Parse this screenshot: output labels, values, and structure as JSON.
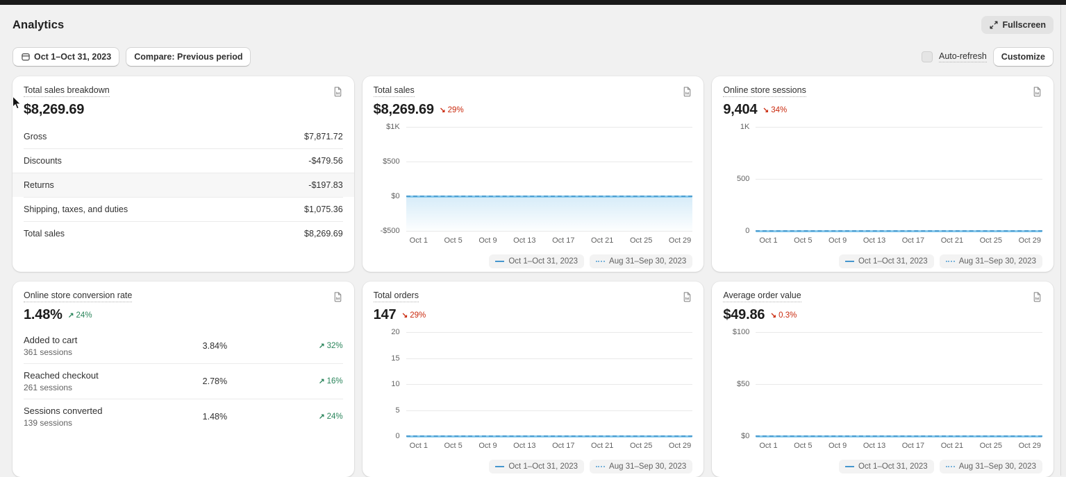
{
  "app": {
    "title": "Analytics",
    "fullscreen_label": "Fullscreen"
  },
  "toolbar": {
    "date_range_label": "Oct 1–Oct 31, 2023",
    "compare_label": "Compare: Previous period",
    "auto_refresh_label": "Auto-refresh",
    "auto_refresh_checked": false,
    "customize_label": "Customize"
  },
  "icons": {
    "trend_up": "↗",
    "trend_down": "↘"
  },
  "colors": {
    "accent_blue": "#4596ce",
    "negative_red": "#ca2a0e",
    "positive_green": "#29845a",
    "page_bg": "#f1f1f1",
    "card_bg": "#ffffff"
  },
  "shared": {
    "x_labels": [
      "Oct 1",
      "Oct 5",
      "Oct 9",
      "Oct 13",
      "Oct 17",
      "Oct 21",
      "Oct 25",
      "Oct 29"
    ],
    "legend": [
      {
        "label": "Oct 1–Oct 31, 2023",
        "style": "solid"
      },
      {
        "label": "Aug 31–Sep 30, 2023",
        "style": "dotted"
      }
    ]
  },
  "cards": [
    {
      "id": "total-sales-breakdown",
      "type": "table",
      "title": "Total sales breakdown",
      "value": "$8,269.69",
      "rows": [
        {
          "label": "Gross",
          "value": "$7,871.72",
          "highlighted": false
        },
        {
          "label": "Discounts",
          "value": "-$479.56",
          "highlighted": false
        },
        {
          "label": "Returns",
          "value": "-$197.83",
          "highlighted": true
        },
        {
          "label": "Shipping, taxes, and duties",
          "value": "$1,075.36",
          "highlighted": false
        },
        {
          "label": "Total sales",
          "value": "$8,269.69",
          "highlighted": false
        }
      ]
    },
    {
      "id": "total-sales",
      "type": "chart",
      "title": "Total sales",
      "value": "$8,269.69",
      "delta": {
        "direction": "down",
        "text": "29%"
      },
      "chart": {
        "y_ticks": [
          "$1K",
          "$500",
          "$0",
          "-$500"
        ],
        "zero_index": 2,
        "fill_below": true,
        "series_note": "current and comparison both flat at ~$0"
      }
    },
    {
      "id": "online-store-sessions",
      "type": "chart",
      "title": "Online store sessions",
      "value": "9,404",
      "delta": {
        "direction": "down",
        "text": "34%"
      },
      "chart": {
        "y_ticks": [
          "1K",
          "500",
          "0"
        ],
        "zero_index": 2,
        "fill_below": false,
        "series_note": "current and comparison both flat at ~0"
      }
    },
    {
      "id": "online-store-conversion-rate",
      "type": "funnel",
      "title": "Online store conversion rate",
      "value": "1.48%",
      "delta": {
        "direction": "up",
        "text": "24%"
      },
      "rows": [
        {
          "label": "Added to cart",
          "sessions": "361 sessions",
          "rate": "3.84%",
          "delta": {
            "direction": "up",
            "text": "32%"
          }
        },
        {
          "label": "Reached checkout",
          "sessions": "261 sessions",
          "rate": "2.78%",
          "delta": {
            "direction": "up",
            "text": "16%"
          }
        },
        {
          "label": "Sessions converted",
          "sessions": "139 sessions",
          "rate": "1.48%",
          "delta": {
            "direction": "up",
            "text": "24%"
          }
        }
      ]
    },
    {
      "id": "total-orders",
      "type": "chart",
      "title": "Total orders",
      "value": "147",
      "delta": {
        "direction": "down",
        "text": "29%"
      },
      "chart": {
        "y_ticks": [
          "20",
          "15",
          "10",
          "5",
          "0"
        ],
        "zero_index": 4,
        "fill_below": false,
        "series_note": "current and comparison both flat at ~0"
      }
    },
    {
      "id": "average-order-value",
      "type": "chart",
      "title": "Average order value",
      "value": "$49.86",
      "delta": {
        "direction": "down",
        "text": "0.3%"
      },
      "chart": {
        "y_ticks": [
          "$100",
          "$50",
          "$0"
        ],
        "zero_index": 2,
        "fill_below": false,
        "series_note": "current and comparison both flat at ~$0"
      }
    }
  ]
}
